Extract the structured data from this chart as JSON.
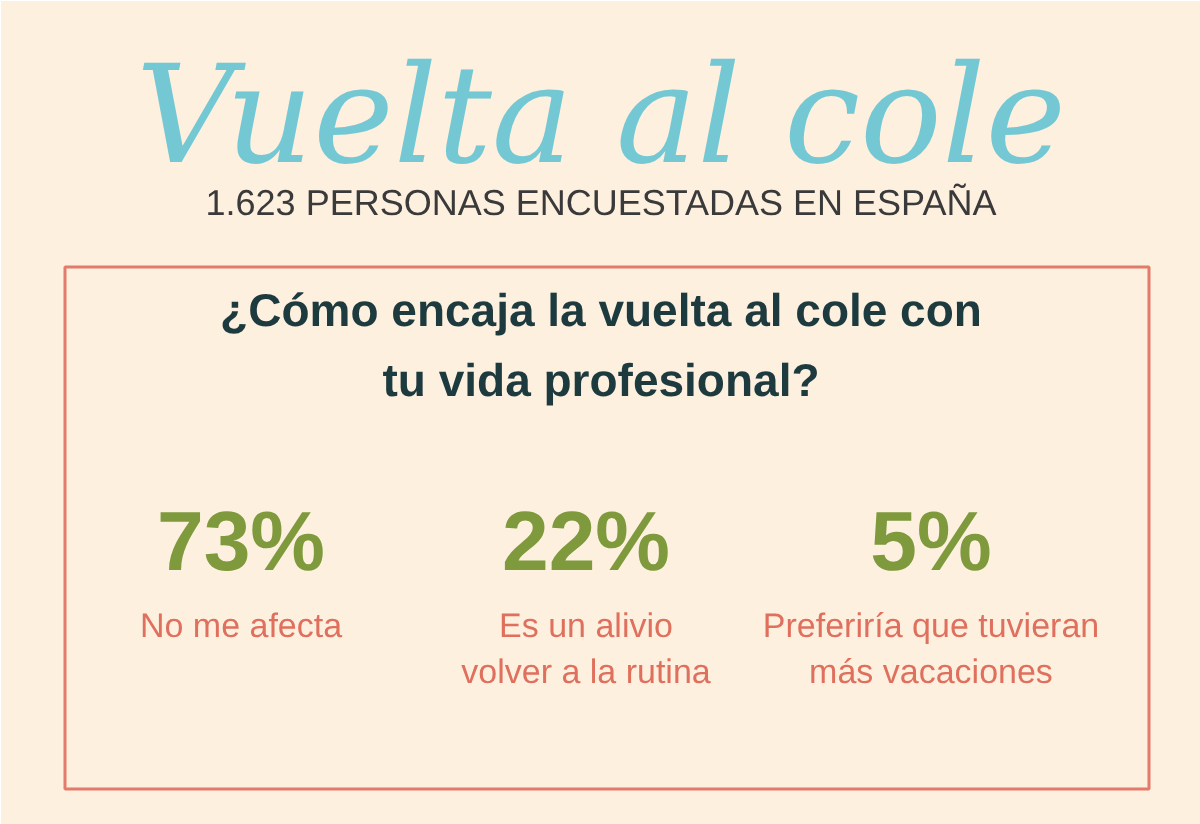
{
  "chart_data": {
    "type": "other",
    "title": "Vuelta al cole",
    "subtitle": "1.623 PERSONAS ENCUESTADAS EN ESPAÑA",
    "annotations": [
      "¿Cómo encaja la vuelta al cole con\ntu vida profesional?"
    ],
    "categories": [
      "No me afecta",
      "Es un alivio\nvolver a la rutina",
      "Preferiría que tuvieran\nmás vacaciones"
    ],
    "values": [
      73,
      22,
      5
    ],
    "value_labels": [
      "73%",
      "22%",
      "5%"
    ],
    "colors": [
      "#7f9a3c",
      "#7f9a3c",
      "#7f9a3c"
    ]
  }
}
